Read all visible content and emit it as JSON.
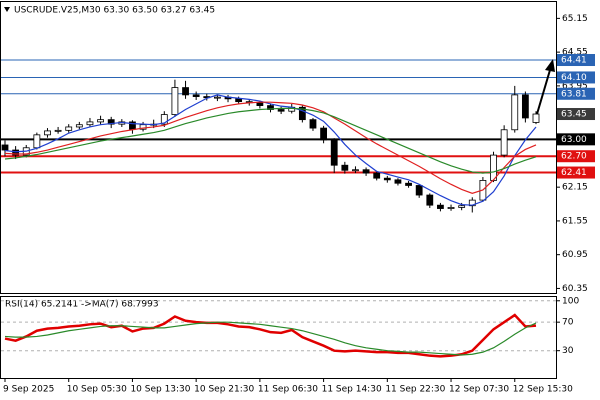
{
  "chart_data": [
    {
      "type": "candlestick",
      "title": "USCRUDE.V25,M30  63.30 63.50 63.27 63.45",
      "categories": [
        "9 Sep 2025",
        null,
        null,
        null,
        null,
        null,
        "10 Sep 05:30",
        null,
        null,
        null,
        null,
        null,
        "10 Sep 13:30",
        null,
        null,
        null,
        null,
        null,
        "10 Sep 21:30",
        null,
        null,
        null,
        null,
        null,
        "11 Sep 06:30",
        null,
        null,
        null,
        null,
        null,
        "11 Sep 14:30",
        null,
        null,
        null,
        null,
        null,
        "11 Sep 22:30",
        null,
        null,
        null,
        null,
        null,
        "12 Sep 07:30",
        null,
        null,
        null,
        null,
        null,
        "12 Sep 15:30",
        null,
        null
      ],
      "open": [
        62.9,
        62.81,
        62.72,
        62.85,
        63.08,
        63.15,
        63.16,
        63.22,
        63.26,
        63.31,
        63.35,
        63.27,
        63.31,
        63.18,
        63.26,
        63.27,
        63.44,
        63.92,
        63.79,
        63.76,
        63.74,
        63.75,
        63.72,
        63.67,
        63.65,
        63.6,
        63.53,
        63.5,
        63.57,
        63.35,
        63.2,
        62.99,
        62.54,
        62.45,
        62.46,
        62.4,
        62.31,
        62.28,
        62.22,
        62.18,
        62.01,
        61.83,
        61.77,
        61.79,
        61.82,
        61.92,
        62.27,
        62.72,
        63.17,
        63.79,
        63.3
      ],
      "high": [
        62.98,
        62.88,
        62.9,
        63.12,
        63.2,
        63.22,
        63.27,
        63.31,
        63.38,
        63.42,
        63.4,
        63.36,
        63.34,
        63.31,
        63.35,
        63.5,
        64.06,
        64.04,
        63.85,
        63.81,
        63.8,
        63.79,
        63.76,
        63.71,
        63.69,
        63.64,
        63.58,
        63.63,
        63.6,
        63.38,
        63.24,
        63.02,
        62.6,
        62.52,
        62.5,
        62.44,
        62.35,
        62.31,
        62.26,
        62.2,
        62.04,
        61.87,
        61.84,
        61.87,
        61.97,
        62.33,
        62.78,
        63.25,
        63.95,
        63.85,
        63.5
      ],
      "low": [
        62.7,
        62.65,
        62.68,
        62.82,
        63.03,
        63.1,
        63.12,
        63.18,
        63.22,
        63.26,
        63.2,
        63.22,
        63.1,
        63.14,
        63.2,
        63.22,
        63.4,
        63.72,
        63.7,
        63.69,
        63.68,
        63.66,
        63.62,
        63.6,
        63.55,
        63.48,
        63.45,
        63.46,
        63.3,
        63.15,
        62.93,
        62.4,
        62.39,
        62.4,
        62.35,
        62.27,
        62.23,
        62.18,
        62.14,
        61.96,
        61.78,
        61.72,
        61.73,
        61.74,
        61.7,
        61.89,
        62.24,
        62.68,
        63.12,
        63.3,
        63.27
      ],
      "close": [
        62.81,
        62.72,
        62.85,
        63.08,
        63.15,
        63.16,
        63.22,
        63.26,
        63.31,
        63.35,
        63.27,
        63.31,
        63.18,
        63.26,
        63.27,
        63.44,
        63.92,
        63.79,
        63.76,
        63.74,
        63.75,
        63.72,
        63.67,
        63.65,
        63.6,
        63.53,
        63.5,
        63.57,
        63.35,
        63.2,
        62.99,
        62.54,
        62.45,
        62.46,
        62.4,
        62.31,
        62.28,
        62.22,
        62.18,
        62.01,
        61.83,
        61.77,
        61.79,
        61.82,
        61.92,
        62.27,
        62.72,
        63.17,
        63.79,
        63.38,
        63.45
      ],
      "series": [
        {
          "color": "#1f3fd0",
          "values": [
            62.8,
            62.78,
            62.79,
            62.84,
            62.92,
            63.01,
            63.11,
            63.17,
            63.22,
            63.26,
            63.28,
            63.3,
            63.28,
            63.27,
            63.26,
            63.29,
            63.41,
            63.53,
            63.63,
            63.73,
            63.79,
            63.75,
            63.73,
            63.71,
            63.68,
            63.63,
            63.59,
            63.57,
            63.51,
            63.43,
            63.32,
            63.13,
            62.91,
            62.72,
            62.57,
            62.43,
            62.38,
            62.33,
            62.28,
            62.2,
            62.1,
            62.0,
            61.91,
            61.84,
            61.83,
            61.9,
            62.07,
            62.35,
            62.71,
            62.99,
            63.22
          ]
        },
        {
          "color": "#e02020",
          "values": [
            62.75,
            62.74,
            62.74,
            62.77,
            62.81,
            62.86,
            62.91,
            62.96,
            63.01,
            63.06,
            63.1,
            63.14,
            63.17,
            63.2,
            63.22,
            63.25,
            63.32,
            63.39,
            63.45,
            63.51,
            63.56,
            63.6,
            63.63,
            63.65,
            63.66,
            63.66,
            63.65,
            63.64,
            63.61,
            63.56,
            63.49,
            63.38,
            63.27,
            63.15,
            63.03,
            62.92,
            62.82,
            62.72,
            62.62,
            62.52,
            62.41,
            62.3,
            62.2,
            62.11,
            62.04,
            62.1,
            62.28,
            62.5,
            62.7,
            62.82,
            62.9
          ]
        },
        {
          "color": "#2a8a2a",
          "values": [
            62.65,
            62.67,
            62.7,
            62.73,
            62.77,
            62.81,
            62.85,
            62.89,
            62.93,
            62.97,
            63.0,
            63.03,
            63.06,
            63.09,
            63.12,
            63.16,
            63.22,
            63.28,
            63.33,
            63.38,
            63.42,
            63.46,
            63.49,
            63.51,
            63.53,
            63.54,
            63.55,
            63.55,
            63.54,
            63.51,
            63.47,
            63.4,
            63.32,
            63.24,
            63.16,
            63.08,
            63.0,
            62.92,
            62.84,
            62.76,
            62.68,
            62.6,
            62.53,
            62.47,
            62.42,
            62.4,
            62.42,
            62.48,
            62.56,
            62.63,
            62.69
          ]
        }
      ],
      "levels": [
        {
          "value": 64.41,
          "label": "64.41",
          "color": "#2a64b4"
        },
        {
          "value": 64.1,
          "label": "64.10",
          "color": "#2a64b4"
        },
        {
          "value": 63.81,
          "label": "63.81",
          "color": "#2a64b4"
        },
        {
          "value": 63,
          "label": "63.00",
          "color": "#000000"
        },
        {
          "value": 62.7,
          "label": "62.70",
          "color": "#e01010"
        },
        {
          "value": 62.41,
          "label": "62.41",
          "color": "#e01010"
        }
      ],
      "last_price": 63.45,
      "ylim": [
        60.26,
        65.45
      ],
      "yticks": [
        65.15,
        64.55,
        63.95,
        62.15,
        61.55,
        60.95,
        60.35
      ]
    },
    {
      "type": "line",
      "title": "RSI(14) 65.2141  ->MA(7) 68.7993",
      "series": [
        {
          "color": "#e00000",
          "values": [
            47,
            44,
            50,
            58,
            61,
            62,
            64,
            65,
            67,
            68,
            63,
            65,
            57,
            61,
            62,
            68,
            78,
            72,
            70,
            69,
            69,
            67,
            64,
            63,
            60,
            56,
            55,
            59,
            49,
            43,
            37,
            30,
            29,
            30,
            29,
            28,
            28,
            27,
            27,
            25,
            23,
            22,
            23,
            25,
            30,
            45,
            60,
            70,
            80,
            64,
            65.2141
          ]
        },
        {
          "color": "#2a8a2a",
          "values": [
            50,
            49,
            49,
            50,
            52,
            55,
            58,
            60,
            62,
            64,
            65,
            65,
            64,
            63,
            62,
            62,
            64,
            66,
            68,
            69,
            70,
            70,
            69,
            68,
            67,
            65,
            63,
            61,
            58,
            54,
            50,
            46,
            41,
            37,
            34,
            32,
            30,
            29,
            28,
            28,
            27,
            26,
            25,
            24,
            25,
            28,
            34,
            43,
            53,
            62,
            68.7993
          ]
        }
      ],
      "ylim": [
        -9,
        106
      ],
      "yticks": [
        100,
        70,
        30
      ]
    }
  ]
}
